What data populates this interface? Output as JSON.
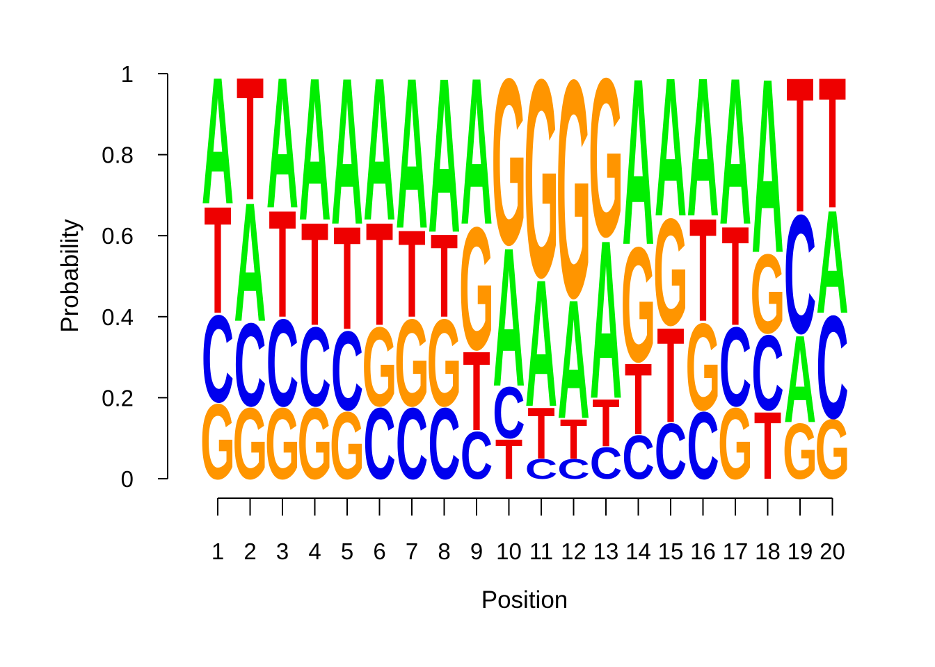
{
  "chart_data": {
    "type": "sequence-logo",
    "title": "",
    "xlabel": "Position",
    "ylabel": "Probability",
    "ylim": [
      0,
      1
    ],
    "y_ticks": [
      "0",
      "0.2",
      "0.4",
      "0.6",
      "0.8",
      "1"
    ],
    "y_tick_values": [
      0,
      0.2,
      0.4,
      0.6,
      0.8,
      1
    ],
    "alphabet_colors": {
      "A": "#00ee00",
      "C": "#0000ee",
      "G": "#ff9500",
      "T": "#ee0000"
    },
    "positions": [
      {
        "label": "1",
        "stack": [
          {
            "base": "G",
            "p": 0.19
          },
          {
            "base": "C",
            "p": 0.22
          },
          {
            "base": "T",
            "p": 0.27
          },
          {
            "base": "A",
            "p": 0.32
          }
        ]
      },
      {
        "label": "2",
        "stack": [
          {
            "base": "G",
            "p": 0.18
          },
          {
            "base": "C",
            "p": 0.21
          },
          {
            "base": "A",
            "p": 0.3
          },
          {
            "base": "T",
            "p": 0.31
          }
        ]
      },
      {
        "label": "3",
        "stack": [
          {
            "base": "G",
            "p": 0.18
          },
          {
            "base": "C",
            "p": 0.22
          },
          {
            "base": "T",
            "p": 0.27
          },
          {
            "base": "A",
            "p": 0.33
          }
        ]
      },
      {
        "label": "4",
        "stack": [
          {
            "base": "G",
            "p": 0.18
          },
          {
            "base": "C",
            "p": 0.2
          },
          {
            "base": "T",
            "p": 0.26
          },
          {
            "base": "A",
            "p": 0.36
          }
        ]
      },
      {
        "label": "5",
        "stack": [
          {
            "base": "G",
            "p": 0.17
          },
          {
            "base": "C",
            "p": 0.2
          },
          {
            "base": "T",
            "p": 0.26
          },
          {
            "base": "A",
            "p": 0.37
          }
        ]
      },
      {
        "label": "6",
        "stack": [
          {
            "base": "C",
            "p": 0.18
          },
          {
            "base": "G",
            "p": 0.2
          },
          {
            "base": "T",
            "p": 0.26
          },
          {
            "base": "A",
            "p": 0.36
          }
        ]
      },
      {
        "label": "7",
        "stack": [
          {
            "base": "C",
            "p": 0.18
          },
          {
            "base": "G",
            "p": 0.22
          },
          {
            "base": "T",
            "p": 0.22
          },
          {
            "base": "A",
            "p": 0.38
          }
        ]
      },
      {
        "label": "8",
        "stack": [
          {
            "base": "C",
            "p": 0.18
          },
          {
            "base": "G",
            "p": 0.22
          },
          {
            "base": "T",
            "p": 0.21
          },
          {
            "base": "A",
            "p": 0.39
          }
        ]
      },
      {
        "label": "9",
        "stack": [
          {
            "base": "C",
            "p": 0.12
          },
          {
            "base": "T",
            "p": 0.2
          },
          {
            "base": "G",
            "p": 0.31
          },
          {
            "base": "A",
            "p": 0.37
          }
        ]
      },
      {
        "label": "10",
        "stack": [
          {
            "base": "T",
            "p": 0.1
          },
          {
            "base": "C",
            "p": 0.13
          },
          {
            "base": "A",
            "p": 0.35
          },
          {
            "base": "G",
            "p": 0.42
          }
        ]
      },
      {
        "label": "11",
        "stack": [
          {
            "base": "C",
            "p": 0.05
          },
          {
            "base": "T",
            "p": 0.13
          },
          {
            "base": "A",
            "p": 0.32
          },
          {
            "base": "G",
            "p": 0.5
          }
        ]
      },
      {
        "label": "12",
        "stack": [
          {
            "base": "C",
            "p": 0.05
          },
          {
            "base": "T",
            "p": 0.1
          },
          {
            "base": "A",
            "p": 0.3
          },
          {
            "base": "G",
            "p": 0.55
          }
        ]
      },
      {
        "label": "13",
        "stack": [
          {
            "base": "C",
            "p": 0.08
          },
          {
            "base": "T",
            "p": 0.12
          },
          {
            "base": "A",
            "p": 0.4
          },
          {
            "base": "G",
            "p": 0.4
          }
        ]
      },
      {
        "label": "14",
        "stack": [
          {
            "base": "C",
            "p": 0.11
          },
          {
            "base": "T",
            "p": 0.18
          },
          {
            "base": "G",
            "p": 0.29
          },
          {
            "base": "A",
            "p": 0.42
          }
        ]
      },
      {
        "label": "15",
        "stack": [
          {
            "base": "C",
            "p": 0.14
          },
          {
            "base": "T",
            "p": 0.24
          },
          {
            "base": "G",
            "p": 0.27
          },
          {
            "base": "A",
            "p": 0.35
          }
        ]
      },
      {
        "label": "16",
        "stack": [
          {
            "base": "C",
            "p": 0.17
          },
          {
            "base": "G",
            "p": 0.22
          },
          {
            "base": "T",
            "p": 0.26
          },
          {
            "base": "A",
            "p": 0.35
          }
        ]
      },
      {
        "label": "17",
        "stack": [
          {
            "base": "G",
            "p": 0.18
          },
          {
            "base": "C",
            "p": 0.2
          },
          {
            "base": "T",
            "p": 0.25
          },
          {
            "base": "A",
            "p": 0.37
          }
        ]
      },
      {
        "label": "18",
        "stack": [
          {
            "base": "T",
            "p": 0.17
          },
          {
            "base": "C",
            "p": 0.19
          },
          {
            "base": "G",
            "p": 0.2
          },
          {
            "base": "A",
            "p": 0.44
          }
        ]
      },
      {
        "label": "19",
        "stack": [
          {
            "base": "G",
            "p": 0.14
          },
          {
            "base": "A",
            "p": 0.22
          },
          {
            "base": "C",
            "p": 0.3
          },
          {
            "base": "T",
            "p": 0.34
          }
        ]
      },
      {
        "label": "20",
        "stack": [
          {
            "base": "G",
            "p": 0.15
          },
          {
            "base": "C",
            "p": 0.26
          },
          {
            "base": "A",
            "p": 0.26
          },
          {
            "base": "T",
            "p": 0.33
          }
        ]
      }
    ]
  }
}
